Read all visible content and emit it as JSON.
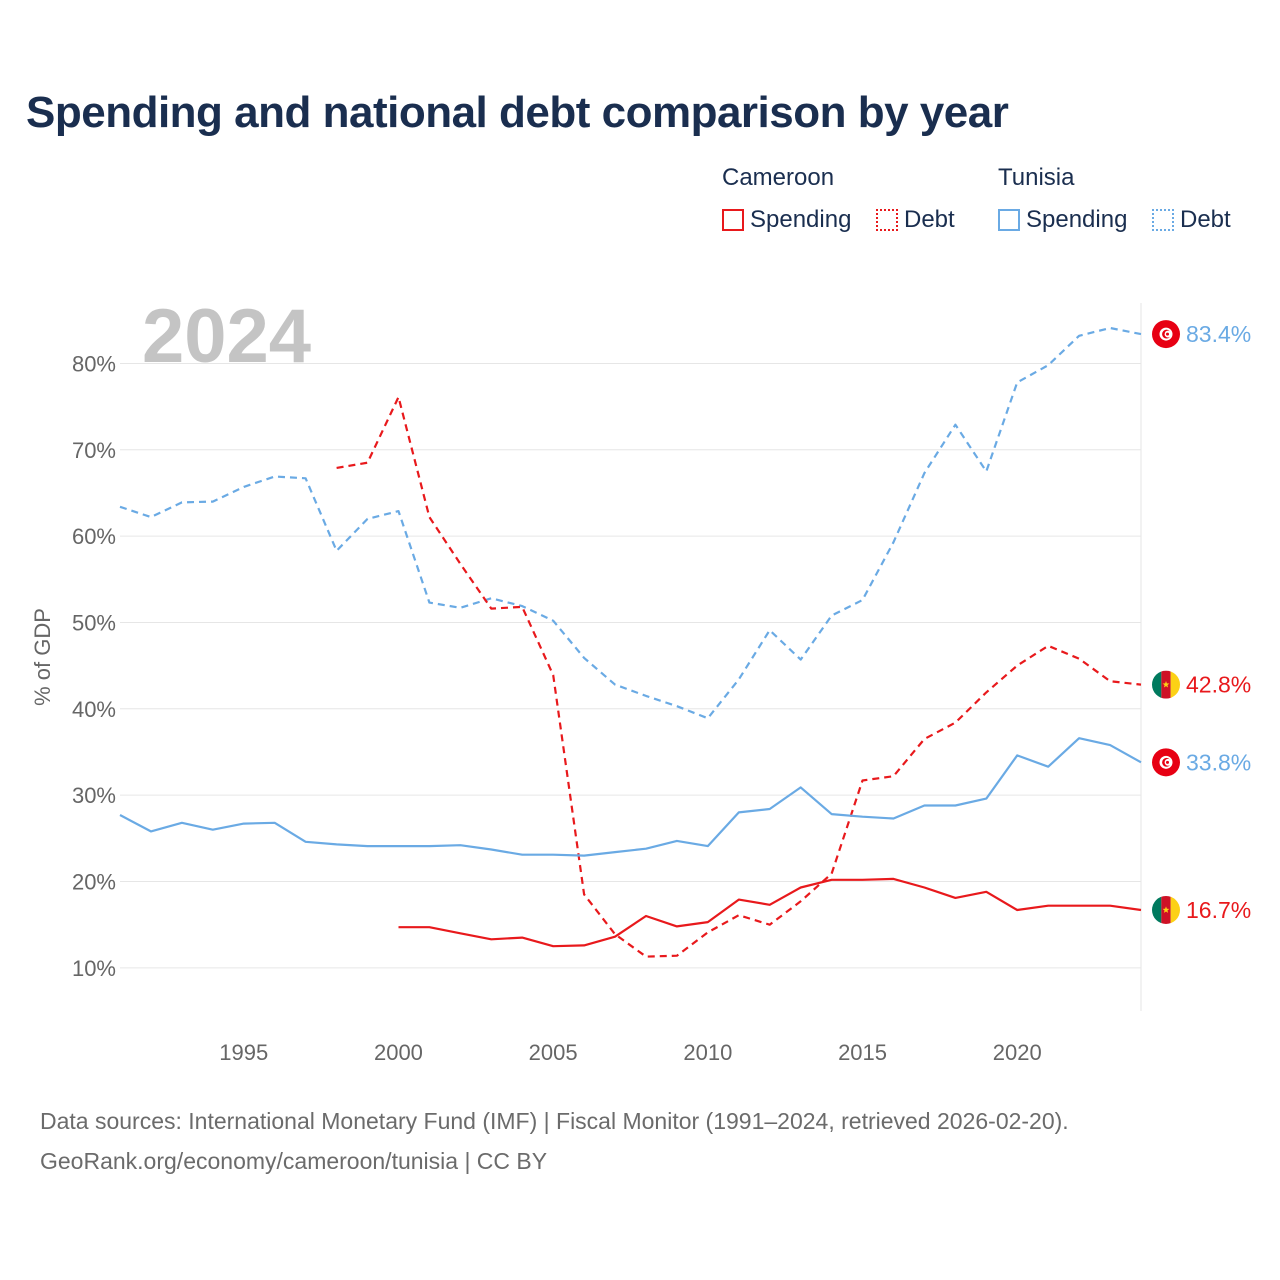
{
  "title": "Spending and national debt comparison by year",
  "legend": {
    "groups": [
      {
        "name": "Cameroon",
        "items": [
          "Spending",
          "Debt"
        ]
      },
      {
        "name": "Tunisia",
        "items": [
          "Spending",
          "Debt"
        ]
      }
    ]
  },
  "year_label": "2024",
  "source_line1": "Data sources: International Monetary Fund (IMF) | Fiscal Monitor (1991–2024, retrieved 2026-02-20).",
  "source_line2": "GeoRank.org/economy/cameroon/tunisia | CC BY",
  "colors": {
    "cameroon": "#e8191c",
    "tunisia": "#6aaae4",
    "grid": "#e6e6e6",
    "axis_text": "#666666"
  },
  "chart_data": {
    "type": "line",
    "title": "Spending and national debt comparison by year",
    "xlabel": "",
    "ylabel": "% of GDP",
    "xlim": [
      1991,
      2024
    ],
    "ylim": [
      5,
      87
    ],
    "yticks": [
      10,
      20,
      30,
      40,
      50,
      60,
      70,
      80
    ],
    "ytick_labels": [
      "10%",
      "20%",
      "30%",
      "40%",
      "50%",
      "60%",
      "70%",
      "80%"
    ],
    "xticks": [
      1995,
      2000,
      2005,
      2010,
      2015,
      2020
    ],
    "xtick_labels": [
      "1995",
      "2000",
      "2005",
      "2010",
      "2015",
      "2020"
    ],
    "grid": true,
    "series": [
      {
        "name": "Tunisia Debt",
        "country": "Tunisia",
        "metric": "Debt",
        "style": "dashed",
        "color": "#6aaae4",
        "end_label": "83.4%",
        "points": [
          [
            1991,
            63.4
          ],
          [
            1992,
            62.2
          ],
          [
            1993,
            63.9
          ],
          [
            1994,
            64.0
          ],
          [
            1995,
            65.7
          ],
          [
            1996,
            66.9
          ],
          [
            1997,
            66.7
          ],
          [
            1998,
            58.3
          ],
          [
            1999,
            62.0
          ],
          [
            2000,
            62.9
          ],
          [
            2001,
            52.3
          ],
          [
            2002,
            51.7
          ],
          [
            2003,
            52.8
          ],
          [
            2004,
            51.9
          ],
          [
            2005,
            50.2
          ],
          [
            2006,
            45.9
          ],
          [
            2007,
            42.8
          ],
          [
            2008,
            41.5
          ],
          [
            2009,
            40.3
          ],
          [
            2010,
            38.9
          ],
          [
            2011,
            43.4
          ],
          [
            2012,
            49.1
          ],
          [
            2013,
            45.7
          ],
          [
            2014,
            50.8
          ],
          [
            2015,
            52.6
          ],
          [
            2016,
            59.3
          ],
          [
            2017,
            67.3
          ],
          [
            2018,
            72.9
          ],
          [
            2019,
            67.5
          ],
          [
            2020,
            77.8
          ],
          [
            2021,
            79.8
          ],
          [
            2022,
            83.2
          ],
          [
            2023,
            84.1
          ],
          [
            2024,
            83.4
          ]
        ]
      },
      {
        "name": "Cameroon Debt",
        "country": "Cameroon",
        "metric": "Debt",
        "style": "dashed",
        "color": "#e8191c",
        "end_label": "42.8%",
        "points": [
          [
            1998,
            67.9
          ],
          [
            1999,
            68.5
          ],
          [
            2000,
            76.1
          ],
          [
            2001,
            62.2
          ],
          [
            2002,
            56.8
          ],
          [
            2003,
            51.6
          ],
          [
            2004,
            51.8
          ],
          [
            2005,
            43.9
          ],
          [
            2006,
            18.5
          ],
          [
            2007,
            13.9
          ],
          [
            2008,
            11.3
          ],
          [
            2009,
            11.4
          ],
          [
            2010,
            14.1
          ],
          [
            2011,
            16.1
          ],
          [
            2012,
            15.0
          ],
          [
            2013,
            17.7
          ],
          [
            2014,
            20.9
          ],
          [
            2015,
            31.7
          ],
          [
            2016,
            32.2
          ],
          [
            2017,
            36.5
          ],
          [
            2018,
            38.4
          ],
          [
            2019,
            41.9
          ],
          [
            2020,
            45.0
          ],
          [
            2021,
            47.3
          ],
          [
            2022,
            45.8
          ],
          [
            2023,
            43.2
          ],
          [
            2024,
            42.8
          ]
        ]
      },
      {
        "name": "Tunisia Spending",
        "country": "Tunisia",
        "metric": "Spending",
        "style": "solid",
        "color": "#6aaae4",
        "end_label": "33.8%",
        "points": [
          [
            1991,
            27.7
          ],
          [
            1992,
            25.8
          ],
          [
            1993,
            26.8
          ],
          [
            1994,
            26.0
          ],
          [
            1995,
            26.7
          ],
          [
            1996,
            26.8
          ],
          [
            1997,
            24.6
          ],
          [
            1998,
            24.3
          ],
          [
            1999,
            24.1
          ],
          [
            2000,
            24.1
          ],
          [
            2001,
            24.1
          ],
          [
            2002,
            24.2
          ],
          [
            2003,
            23.7
          ],
          [
            2004,
            23.1
          ],
          [
            2005,
            23.1
          ],
          [
            2006,
            23.0
          ],
          [
            2007,
            23.4
          ],
          [
            2008,
            23.8
          ],
          [
            2009,
            24.7
          ],
          [
            2010,
            24.1
          ],
          [
            2011,
            28.0
          ],
          [
            2012,
            28.4
          ],
          [
            2013,
            30.9
          ],
          [
            2014,
            27.8
          ],
          [
            2015,
            27.5
          ],
          [
            2016,
            27.3
          ],
          [
            2017,
            28.8
          ],
          [
            2018,
            28.8
          ],
          [
            2019,
            29.6
          ],
          [
            2020,
            34.6
          ],
          [
            2021,
            33.3
          ],
          [
            2022,
            36.6
          ],
          [
            2023,
            35.8
          ],
          [
            2024,
            33.8
          ]
        ]
      },
      {
        "name": "Cameroon Spending",
        "country": "Cameroon",
        "metric": "Spending",
        "style": "solid",
        "color": "#e8191c",
        "end_label": "16.7%",
        "points": [
          [
            2000,
            14.7
          ],
          [
            2001,
            14.7
          ],
          [
            2002,
            14.0
          ],
          [
            2003,
            13.3
          ],
          [
            2004,
            13.5
          ],
          [
            2005,
            12.5
          ],
          [
            2006,
            12.6
          ],
          [
            2007,
            13.6
          ],
          [
            2008,
            16.0
          ],
          [
            2009,
            14.8
          ],
          [
            2010,
            15.3
          ],
          [
            2011,
            17.9
          ],
          [
            2012,
            17.3
          ],
          [
            2013,
            19.3
          ],
          [
            2014,
            20.2
          ],
          [
            2015,
            20.2
          ],
          [
            2016,
            20.3
          ],
          [
            2017,
            19.3
          ],
          [
            2018,
            18.1
          ],
          [
            2019,
            18.8
          ],
          [
            2020,
            16.7
          ],
          [
            2021,
            17.2
          ],
          [
            2022,
            17.2
          ],
          [
            2023,
            17.2
          ],
          [
            2024,
            16.7
          ]
        ]
      }
    ]
  }
}
